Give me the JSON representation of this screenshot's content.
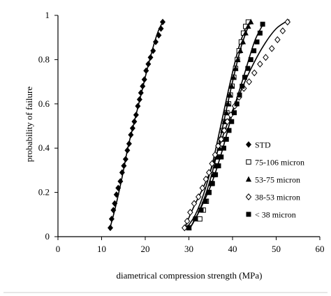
{
  "chart_data": {
    "type": "scatter",
    "title": "",
    "xlabel": "diametrical compression strength (MPa)",
    "ylabel": "probability of failure",
    "xlim": [
      0,
      60
    ],
    "ylim": [
      0,
      1
    ],
    "x_ticks": [
      "0",
      "10",
      "20",
      "30",
      "40",
      "50",
      "60"
    ],
    "y_ticks": [
      "0",
      "0.2",
      "0.4",
      "0.6",
      "0.8",
      "1"
    ],
    "grid": false,
    "legend_position": "right",
    "series": [
      {
        "name": "STD",
        "marker": "diamond-filled",
        "x": [
          12.0,
          12.3,
          12.7,
          13.0,
          13.4,
          13.8,
          14.3,
          14.7,
          15.1,
          15.5,
          15.9,
          16.3,
          16.7,
          17.1,
          17.5,
          17.9,
          18.3,
          18.7,
          19.0,
          19.4,
          19.8,
          20.2,
          20.7,
          21.2,
          21.8,
          22.4,
          23.1,
          23.6,
          24.0
        ],
        "y": [
          0.04,
          0.08,
          0.12,
          0.15,
          0.19,
          0.22,
          0.25,
          0.29,
          0.32,
          0.35,
          0.39,
          0.42,
          0.46,
          0.49,
          0.52,
          0.55,
          0.59,
          0.62,
          0.65,
          0.68,
          0.71,
          0.75,
          0.78,
          0.81,
          0.84,
          0.88,
          0.91,
          0.94,
          0.97
        ]
      },
      {
        "name": "75-106 micron",
        "marker": "square-open",
        "x": [
          30.0,
          32.5,
          33.3,
          34.0,
          34.6,
          35.2,
          35.7,
          36.2,
          36.7,
          37.1,
          37.5,
          37.9,
          38.3,
          38.7,
          39.1,
          39.5,
          39.9,
          40.3,
          40.7,
          41.1,
          41.5,
          42.0,
          42.5,
          43.0,
          43.6
        ],
        "y": [
          0.04,
          0.08,
          0.12,
          0.16,
          0.2,
          0.24,
          0.28,
          0.32,
          0.36,
          0.4,
          0.44,
          0.48,
          0.52,
          0.56,
          0.6,
          0.64,
          0.68,
          0.72,
          0.76,
          0.8,
          0.84,
          0.88,
          0.92,
          0.95,
          0.97
        ]
      },
      {
        "name": "53-75  micron",
        "marker": "triangle-filled",
        "x": [
          30.0,
          31.5,
          32.6,
          33.5,
          34.3,
          35.0,
          35.6,
          36.1,
          36.6,
          37.0,
          37.4,
          37.8,
          38.2,
          38.6,
          39.0,
          39.4,
          39.8,
          40.2,
          40.7,
          41.2,
          41.8,
          42.4,
          43.0,
          43.6,
          44.2
        ],
        "y": [
          0.04,
          0.08,
          0.12,
          0.16,
          0.2,
          0.24,
          0.28,
          0.32,
          0.36,
          0.4,
          0.44,
          0.48,
          0.52,
          0.56,
          0.6,
          0.64,
          0.68,
          0.72,
          0.76,
          0.8,
          0.84,
          0.88,
          0.92,
          0.95,
          0.97
        ]
      },
      {
        "name": "38-53  micron",
        "marker": "diamond-open",
        "x": [
          29.0,
          29.6,
          30.3,
          31.2,
          32.2,
          33.1,
          33.9,
          34.6,
          35.3,
          36.0,
          36.7,
          37.4,
          38.1,
          38.8,
          39.6,
          40.5,
          41.5,
          42.6,
          43.8,
          45.0,
          46.3,
          47.6,
          49.0,
          50.3,
          51.5,
          52.6
        ],
        "y": [
          0.04,
          0.07,
          0.11,
          0.15,
          0.18,
          0.22,
          0.26,
          0.29,
          0.33,
          0.37,
          0.41,
          0.44,
          0.48,
          0.52,
          0.55,
          0.59,
          0.63,
          0.67,
          0.7,
          0.74,
          0.78,
          0.81,
          0.85,
          0.89,
          0.93,
          0.97
        ]
      },
      {
        "name": "< 38   micron",
        "marker": "square-filled",
        "x": [
          30.0,
          31.5,
          32.8,
          33.8,
          34.6,
          35.4,
          36.1,
          36.8,
          37.4,
          38.0,
          38.6,
          39.2,
          39.8,
          40.4,
          41.0,
          41.6,
          42.2,
          42.8,
          43.5,
          44.2,
          44.9,
          45.6,
          46.3,
          46.9
        ],
        "y": [
          0.04,
          0.08,
          0.12,
          0.16,
          0.2,
          0.24,
          0.28,
          0.32,
          0.36,
          0.4,
          0.44,
          0.48,
          0.52,
          0.56,
          0.6,
          0.64,
          0.68,
          0.72,
          0.76,
          0.8,
          0.84,
          0.88,
          0.92,
          0.96
        ]
      }
    ],
    "fit_curves": [
      {
        "x": [
          11.8,
          13.0,
          14.5,
          16.0,
          17.5,
          19.0,
          20.5,
          22.0,
          23.0,
          24.0
        ],
        "y": [
          0.03,
          0.12,
          0.25,
          0.4,
          0.52,
          0.64,
          0.76,
          0.87,
          0.93,
          0.97
        ]
      },
      {
        "x": [
          30.0,
          32.0,
          34.0,
          36.0,
          38.0,
          40.0,
          42.0,
          44.0
        ],
        "y": [
          0.03,
          0.1,
          0.2,
          0.34,
          0.52,
          0.7,
          0.86,
          0.97
        ]
      },
      {
        "x": [
          29.5,
          31.5,
          33.5,
          35.5,
          37.5,
          39.5,
          41.5,
          43.5
        ],
        "y": [
          0.04,
          0.1,
          0.2,
          0.34,
          0.52,
          0.7,
          0.86,
          0.97
        ]
      },
      {
        "x": [
          29.0,
          31.0,
          33.0,
          35.0,
          37.0,
          39.0,
          41.5,
          44.0,
          47.0,
          50.0,
          53.0
        ],
        "y": [
          0.04,
          0.13,
          0.21,
          0.3,
          0.41,
          0.52,
          0.64,
          0.75,
          0.86,
          0.94,
          0.98
        ]
      },
      {
        "x": [
          30.0,
          32.5,
          35.0,
          37.5,
          40.0,
          42.5,
          45.0,
          47.0
        ],
        "y": [
          0.03,
          0.12,
          0.23,
          0.38,
          0.56,
          0.72,
          0.88,
          0.96
        ]
      }
    ]
  }
}
